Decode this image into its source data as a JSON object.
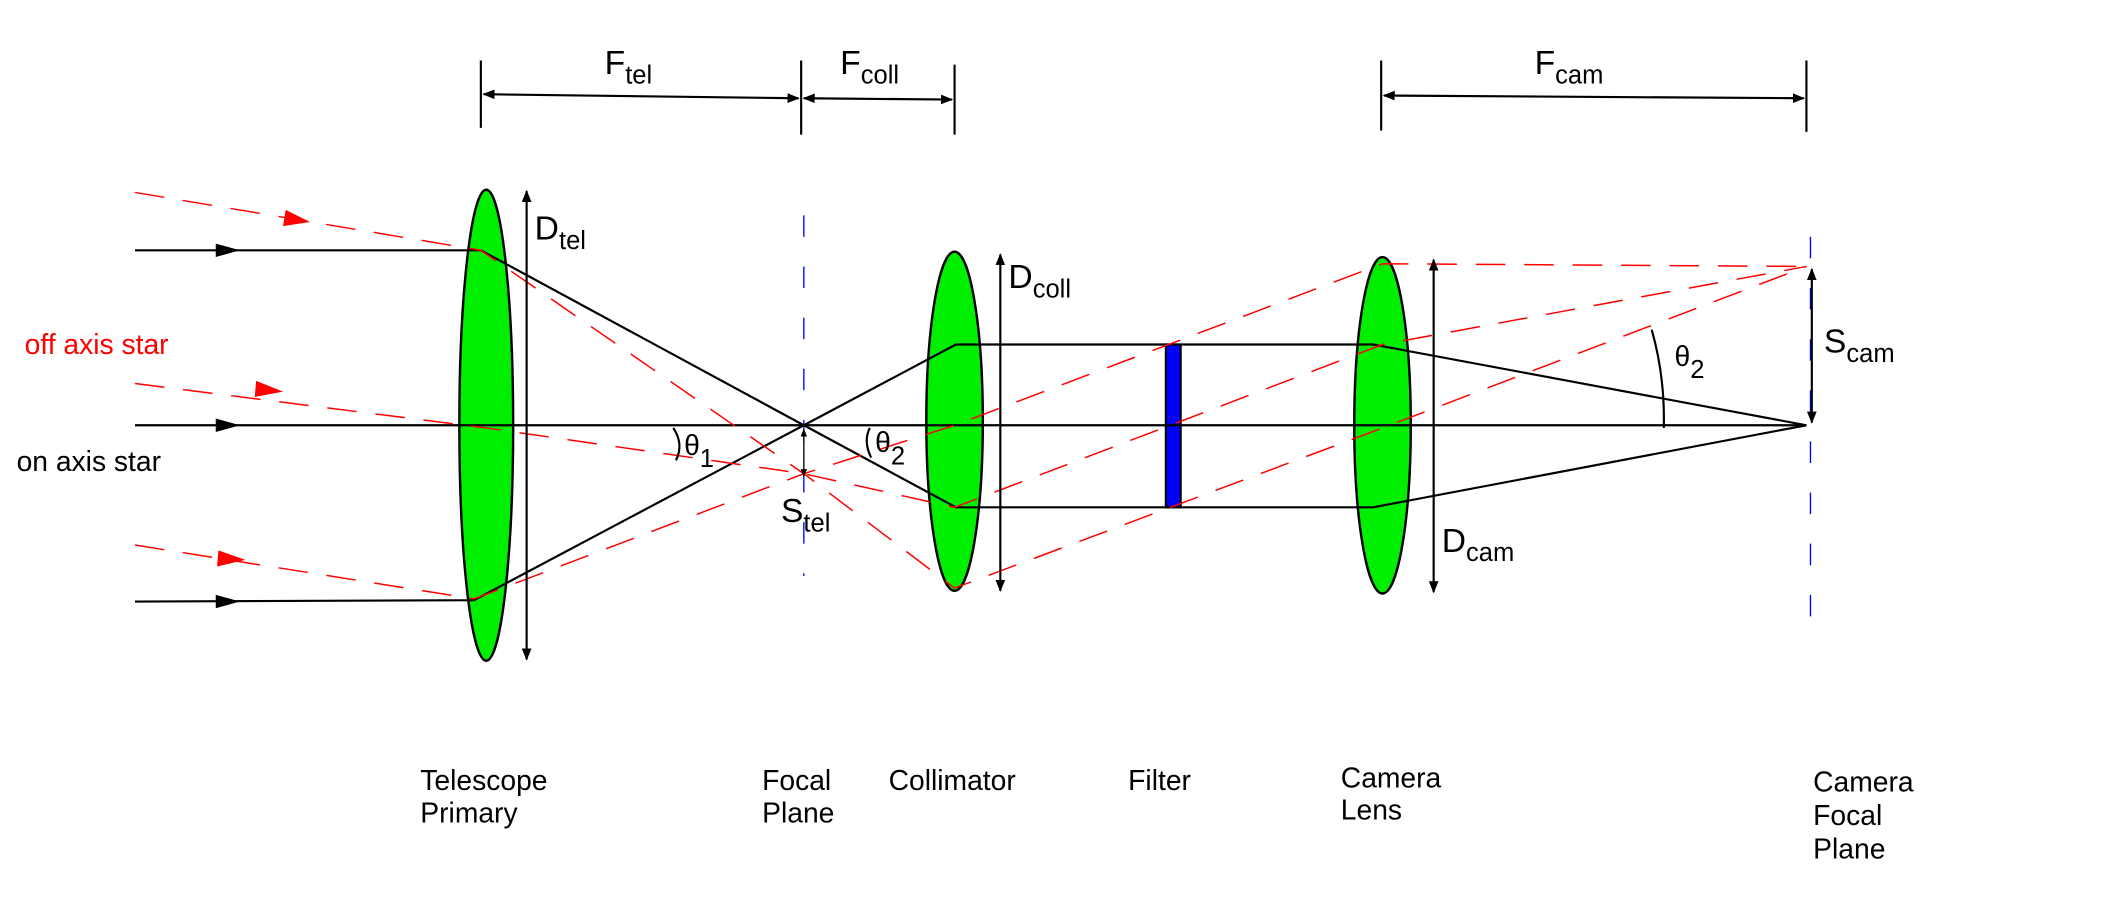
{
  "colors": {
    "lens": "#00ee00",
    "filter": "#0000ff",
    "off_axis_ray": "#ff0000",
    "on_axis_ray": "#000000",
    "focal_plane": "#0000ff"
  },
  "rays": {
    "off_axis": "off axis star",
    "on_axis": "on axis star"
  },
  "dimensions": {
    "f_tel": {
      "main": "F",
      "sub": "tel"
    },
    "f_coll": {
      "main": "F",
      "sub": "coll"
    },
    "f_cam": {
      "main": "F",
      "sub": "cam"
    },
    "d_tel": {
      "main": "D",
      "sub": "tel"
    },
    "d_coll": {
      "main": "D",
      "sub": "coll"
    },
    "d_cam": {
      "main": "D",
      "sub": "cam"
    },
    "s_tel": {
      "main": "S",
      "sub": "tel"
    },
    "s_cam": {
      "main": "S",
      "sub": "cam"
    },
    "theta1": {
      "main": "θ",
      "sub": "1"
    },
    "theta2_coll": {
      "main": "θ",
      "sub": "2"
    },
    "theta2_cam": {
      "main": "θ",
      "sub": "2"
    }
  },
  "components": [
    {
      "lines": [
        "Telescope",
        "Primary"
      ]
    },
    {
      "lines": [
        "Focal",
        "Plane"
      ]
    },
    {
      "lines": [
        "Collimator"
      ]
    },
    {
      "lines": [
        "Filter"
      ]
    },
    {
      "lines": [
        "Camera",
        "Lens"
      ]
    },
    {
      "lines": [
        "Camera",
        "Focal",
        "Plane"
      ]
    }
  ]
}
